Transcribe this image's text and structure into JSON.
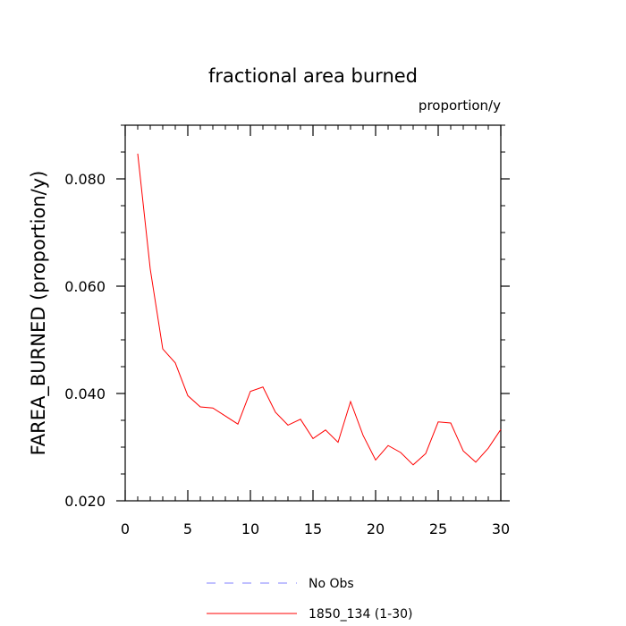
{
  "chart_data": {
    "type": "line",
    "title": "fractional area burned",
    "units_label": "proportion/y",
    "xlabel": "",
    "ylabel": "FAREA_BURNED  (proportion/y)",
    "xlim": [
      0,
      30
    ],
    "ylim": [
      0.02,
      0.09
    ],
    "x_ticks": [
      0,
      5,
      10,
      15,
      20,
      25,
      30
    ],
    "y_ticks": [
      0.02,
      0.04,
      0.06,
      0.08
    ],
    "y_tick_labels": [
      "0.020",
      "0.040",
      "0.060",
      "0.080"
    ],
    "grid": false,
    "legend_position": "bottom",
    "series": [
      {
        "name": "No Obs",
        "color": "#8080ff",
        "dash": true,
        "x": [],
        "values": []
      },
      {
        "name": "1850_134 (1-30)",
        "color": "#ff0000",
        "dash": false,
        "x": [
          1,
          2,
          3,
          4,
          5,
          6,
          7,
          8,
          9,
          10,
          11,
          12,
          13,
          14,
          15,
          16,
          17,
          18,
          19,
          20,
          21,
          22,
          23,
          24,
          25,
          26,
          27,
          28,
          29,
          30
        ],
        "values": [
          0.0847,
          0.0632,
          0.0483,
          0.0457,
          0.0396,
          0.0375,
          0.0373,
          0.0358,
          0.0343,
          0.0404,
          0.0412,
          0.0365,
          0.0341,
          0.0352,
          0.0316,
          0.0332,
          0.0309,
          0.0385,
          0.0322,
          0.0276,
          0.0303,
          0.029,
          0.0267,
          0.0288,
          0.0347,
          0.0345,
          0.0293,
          0.0272,
          0.0298,
          0.0333
        ]
      }
    ]
  }
}
